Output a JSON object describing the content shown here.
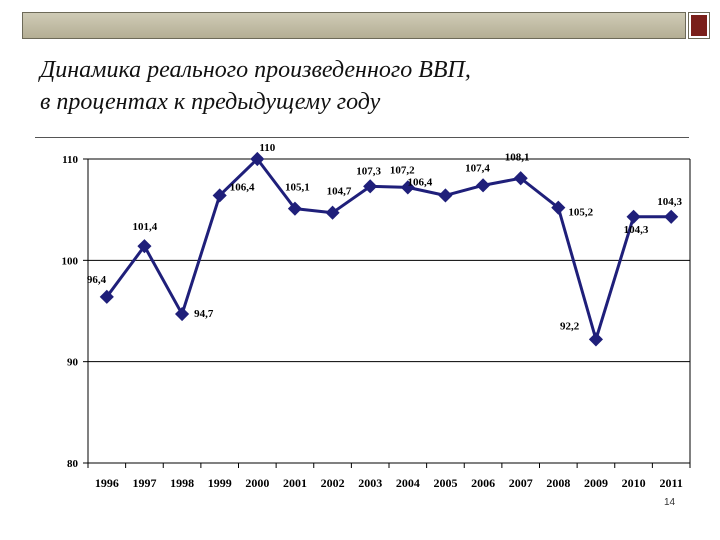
{
  "slide": {
    "title_line1": "Динамика реального произведенного ВВП,",
    "title_line2": "в процентах к предыдущему году",
    "number": "14"
  },
  "colors": {
    "accent_bar": "#c2bda3",
    "corner_box": "#7a1f1a",
    "series_line": "#1f1f7a"
  },
  "chart_data": {
    "type": "line",
    "title": "",
    "xlabel": "",
    "ylabel": "",
    "ylim": [
      80,
      110
    ],
    "yticks": [
      80,
      90,
      100,
      110
    ],
    "grid": true,
    "legend": "none",
    "categories": [
      "1996",
      "1997",
      "1998",
      "1999",
      "2000",
      "2001",
      "2002",
      "2003",
      "2004",
      "2005",
      "2006",
      "2007",
      "2008",
      "2009",
      "2010",
      "2011"
    ],
    "series": [
      {
        "values": [
          96.4,
          101.4,
          94.7,
          106.4,
          110,
          105.1,
          104.7,
          107.3,
          107.2,
          106.4,
          107.4,
          108.1,
          105.2,
          92.2,
          104.3,
          104.3
        ],
        "labels": [
          "96,4",
          "101,4",
          "94,7",
          "106,4",
          "110",
          "105,1",
          "104,7",
          "107,3",
          "107,2",
          "106,4",
          "107,4",
          "108,1",
          "105,2",
          "92,2",
          "104,3",
          "104,3"
        ],
        "color": "#1f1f7a"
      }
    ]
  }
}
